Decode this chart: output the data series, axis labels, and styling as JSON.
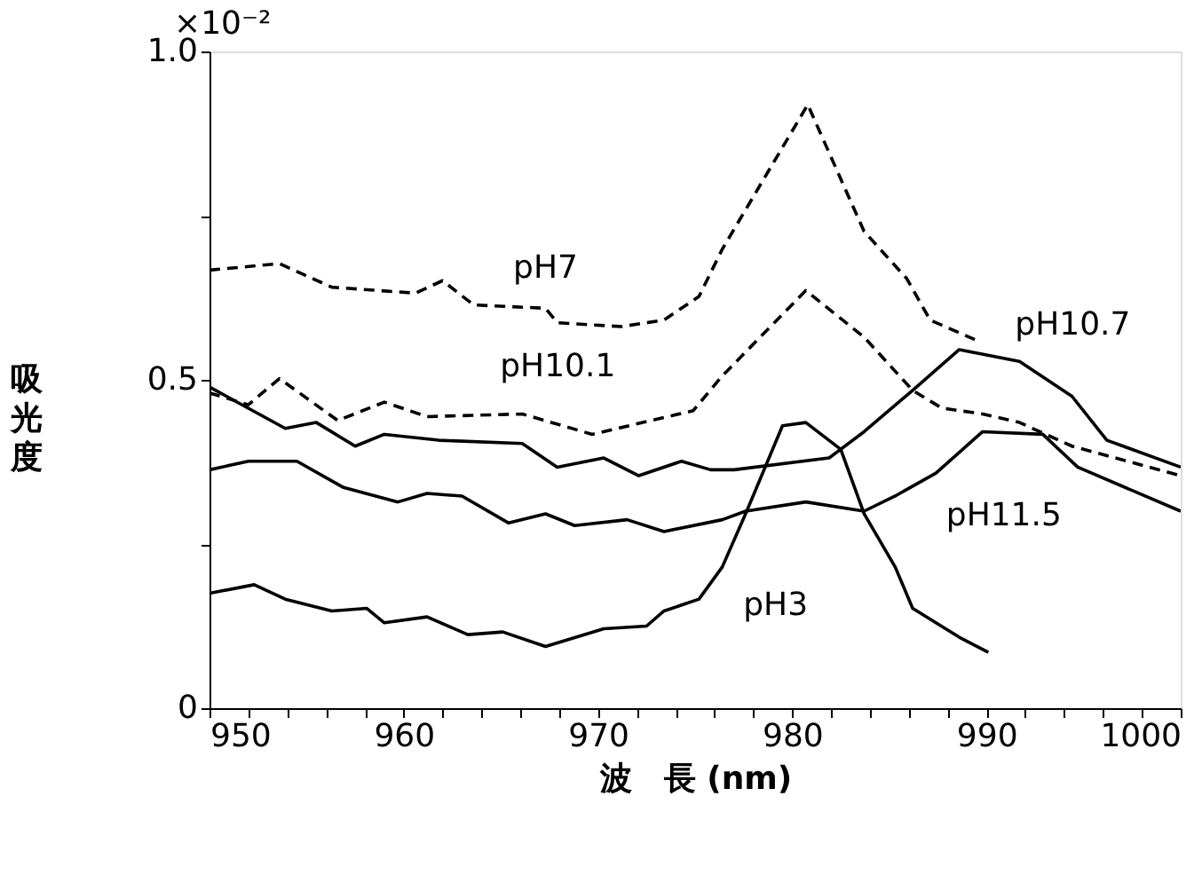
{
  "chart_data": {
    "type": "line",
    "xlabel": "波　長 (nm)",
    "ylabel": "吸光度",
    "annotations": [
      "×10⁻²"
    ],
    "xlim": [
      950,
      1000
    ],
    "ylim": [
      0,
      1.0
    ],
    "xticks": [
      950,
      {
        "value": 952,
        "label": null
      },
      {
        "value": 954,
        "label": null
      },
      {
        "value": 956,
        "label": null
      },
      {
        "value": 958,
        "label": null
      },
      960,
      {
        "value": 962,
        "label": null
      },
      {
        "value": 964,
        "label": null
      },
      {
        "value": 966,
        "label": null
      },
      {
        "value": 968,
        "label": null
      },
      970,
      {
        "value": 972,
        "label": null
      },
      {
        "value": 974,
        "label": null
      },
      {
        "value": 976,
        "label": null
      },
      {
        "value": 978,
        "label": null
      },
      980,
      {
        "value": 982,
        "label": null
      },
      {
        "value": 984,
        "label": null
      },
      {
        "value": 986,
        "label": null
      },
      {
        "value": 988,
        "label": null
      },
      990,
      {
        "value": 992,
        "label": null
      },
      {
        "value": 994,
        "label": null
      },
      {
        "value": 996,
        "label": null
      },
      {
        "value": 998,
        "label": null
      },
      1000
    ],
    "yticks": [
      0,
      {
        "value": 0.25,
        "label": null
      },
      0.5,
      {
        "value": 0.75,
        "label": null
      },
      {
        "value": 1.0,
        "label": "1.0"
      }
    ],
    "grid": false,
    "marker": "none",
    "series": [
      {
        "name": "pH7",
        "color": "#000000",
        "line_style": "dashed",
        "x": [
          950,
          953.6,
          956.3,
          960.6,
          962,
          963.6,
          967.3,
          967.9,
          971.2,
          973.4,
          975.2,
          976.4,
          980.8,
          983.7,
          985.9,
          987.1,
          989.5
        ],
        "values": [
          0.667,
          0.677,
          0.641,
          0.632,
          0.651,
          0.614,
          0.609,
          0.587,
          0.581,
          0.591,
          0.627,
          0.699,
          0.919,
          0.726,
          0.654,
          0.591,
          0.56
        ]
      },
      {
        "name": "pH10.1",
        "color": "#000000",
        "line_style": "dashed",
        "x": [
          950,
          952,
          953.6,
          956.6,
          959,
          961.2,
          966.1,
          969.7,
          974.9,
          976.4,
          980.7,
          983.7,
          986.2,
          987.7,
          989.8,
          991.7,
          994.4,
          1000
        ],
        "values": [
          0.48,
          0.462,
          0.502,
          0.438,
          0.466,
          0.444,
          0.448,
          0.417,
          0.453,
          0.506,
          0.636,
          0.565,
          0.484,
          0.457,
          0.448,
          0.435,
          0.399,
          0.354
        ]
      },
      {
        "name": "pH10.7",
        "color": "#000000",
        "line_style": "solid",
        "x": [
          950,
          953.9,
          955.5,
          957.5,
          959,
          961.8,
          966.1,
          967.9,
          970.3,
          972.1,
          974.3,
          975.8,
          977,
          981.9,
          983.7,
          986.2,
          988.6,
          991.7,
          994.4,
          996.2,
          1000
        ],
        "values": [
          0.489,
          0.426,
          0.435,
          0.399,
          0.417,
          0.408,
          0.403,
          0.367,
          0.381,
          0.354,
          0.376,
          0.363,
          0.363,
          0.381,
          0.421,
          0.484,
          0.546,
          0.528,
          0.475,
          0.408,
          0.367
        ]
      },
      {
        "name": "pH11.5",
        "color": "#000000",
        "line_style": "solid",
        "x": [
          950,
          952,
          954.5,
          956.9,
          959.7,
          961.2,
          963,
          965.4,
          967.3,
          968.8,
          971.5,
          973.4,
          976.4,
          977.6,
          980.7,
          983.7,
          985.3,
          987.4,
          989.8,
          992.9,
          994.7,
          1000
        ],
        "values": [
          0.363,
          0.376,
          0.376,
          0.336,
          0.314,
          0.327,
          0.323,
          0.282,
          0.296,
          0.278,
          0.287,
          0.269,
          0.287,
          0.3,
          0.314,
          0.3,
          0.323,
          0.358,
          0.421,
          0.417,
          0.367,
          0.3
        ]
      },
      {
        "name": "pH3",
        "color": "#000000",
        "line_style": "solid",
        "x": [
          950,
          952.3,
          953.9,
          956.3,
          958.1,
          959,
          961.2,
          963.3,
          965.1,
          967.3,
          970.3,
          972.5,
          973.4,
          975.2,
          976.4,
          977.6,
          979.5,
          980.7,
          982.5,
          983.7,
          985.3,
          986.2,
          988.6,
          990.1
        ],
        "values": [
          0.175,
          0.188,
          0.166,
          0.148,
          0.152,
          0.13,
          0.139,
          0.112,
          0.116,
          0.094,
          0.121,
          0.125,
          0.148,
          0.166,
          0.215,
          0.296,
          0.43,
          0.435,
          0.394,
          0.296,
          0.215,
          0.152,
          0.108,
          0.085
        ]
      }
    ]
  }
}
